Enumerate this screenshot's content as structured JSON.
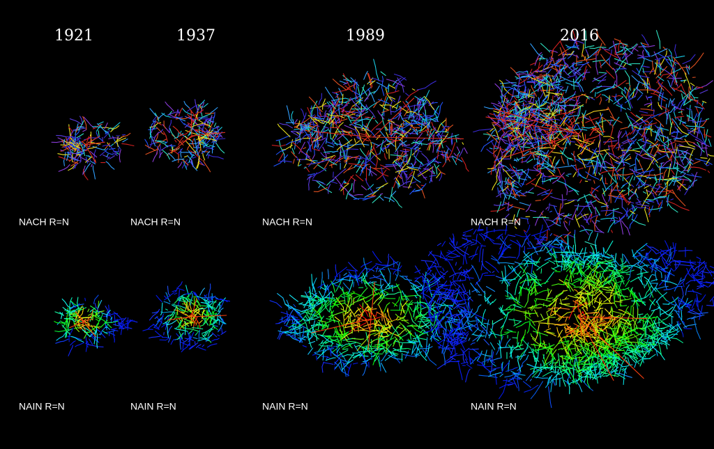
{
  "years": [
    "1921",
    "1937",
    "1989",
    "2016"
  ],
  "panels": [
    [
      "NACH R=N",
      "NACH R=N",
      "NACH R=N",
      "NACH R=N"
    ],
    [
      "NAIN R=N",
      "NAIN R=N",
      "NAIN R=N",
      "NAIN R=N"
    ]
  ]
}
